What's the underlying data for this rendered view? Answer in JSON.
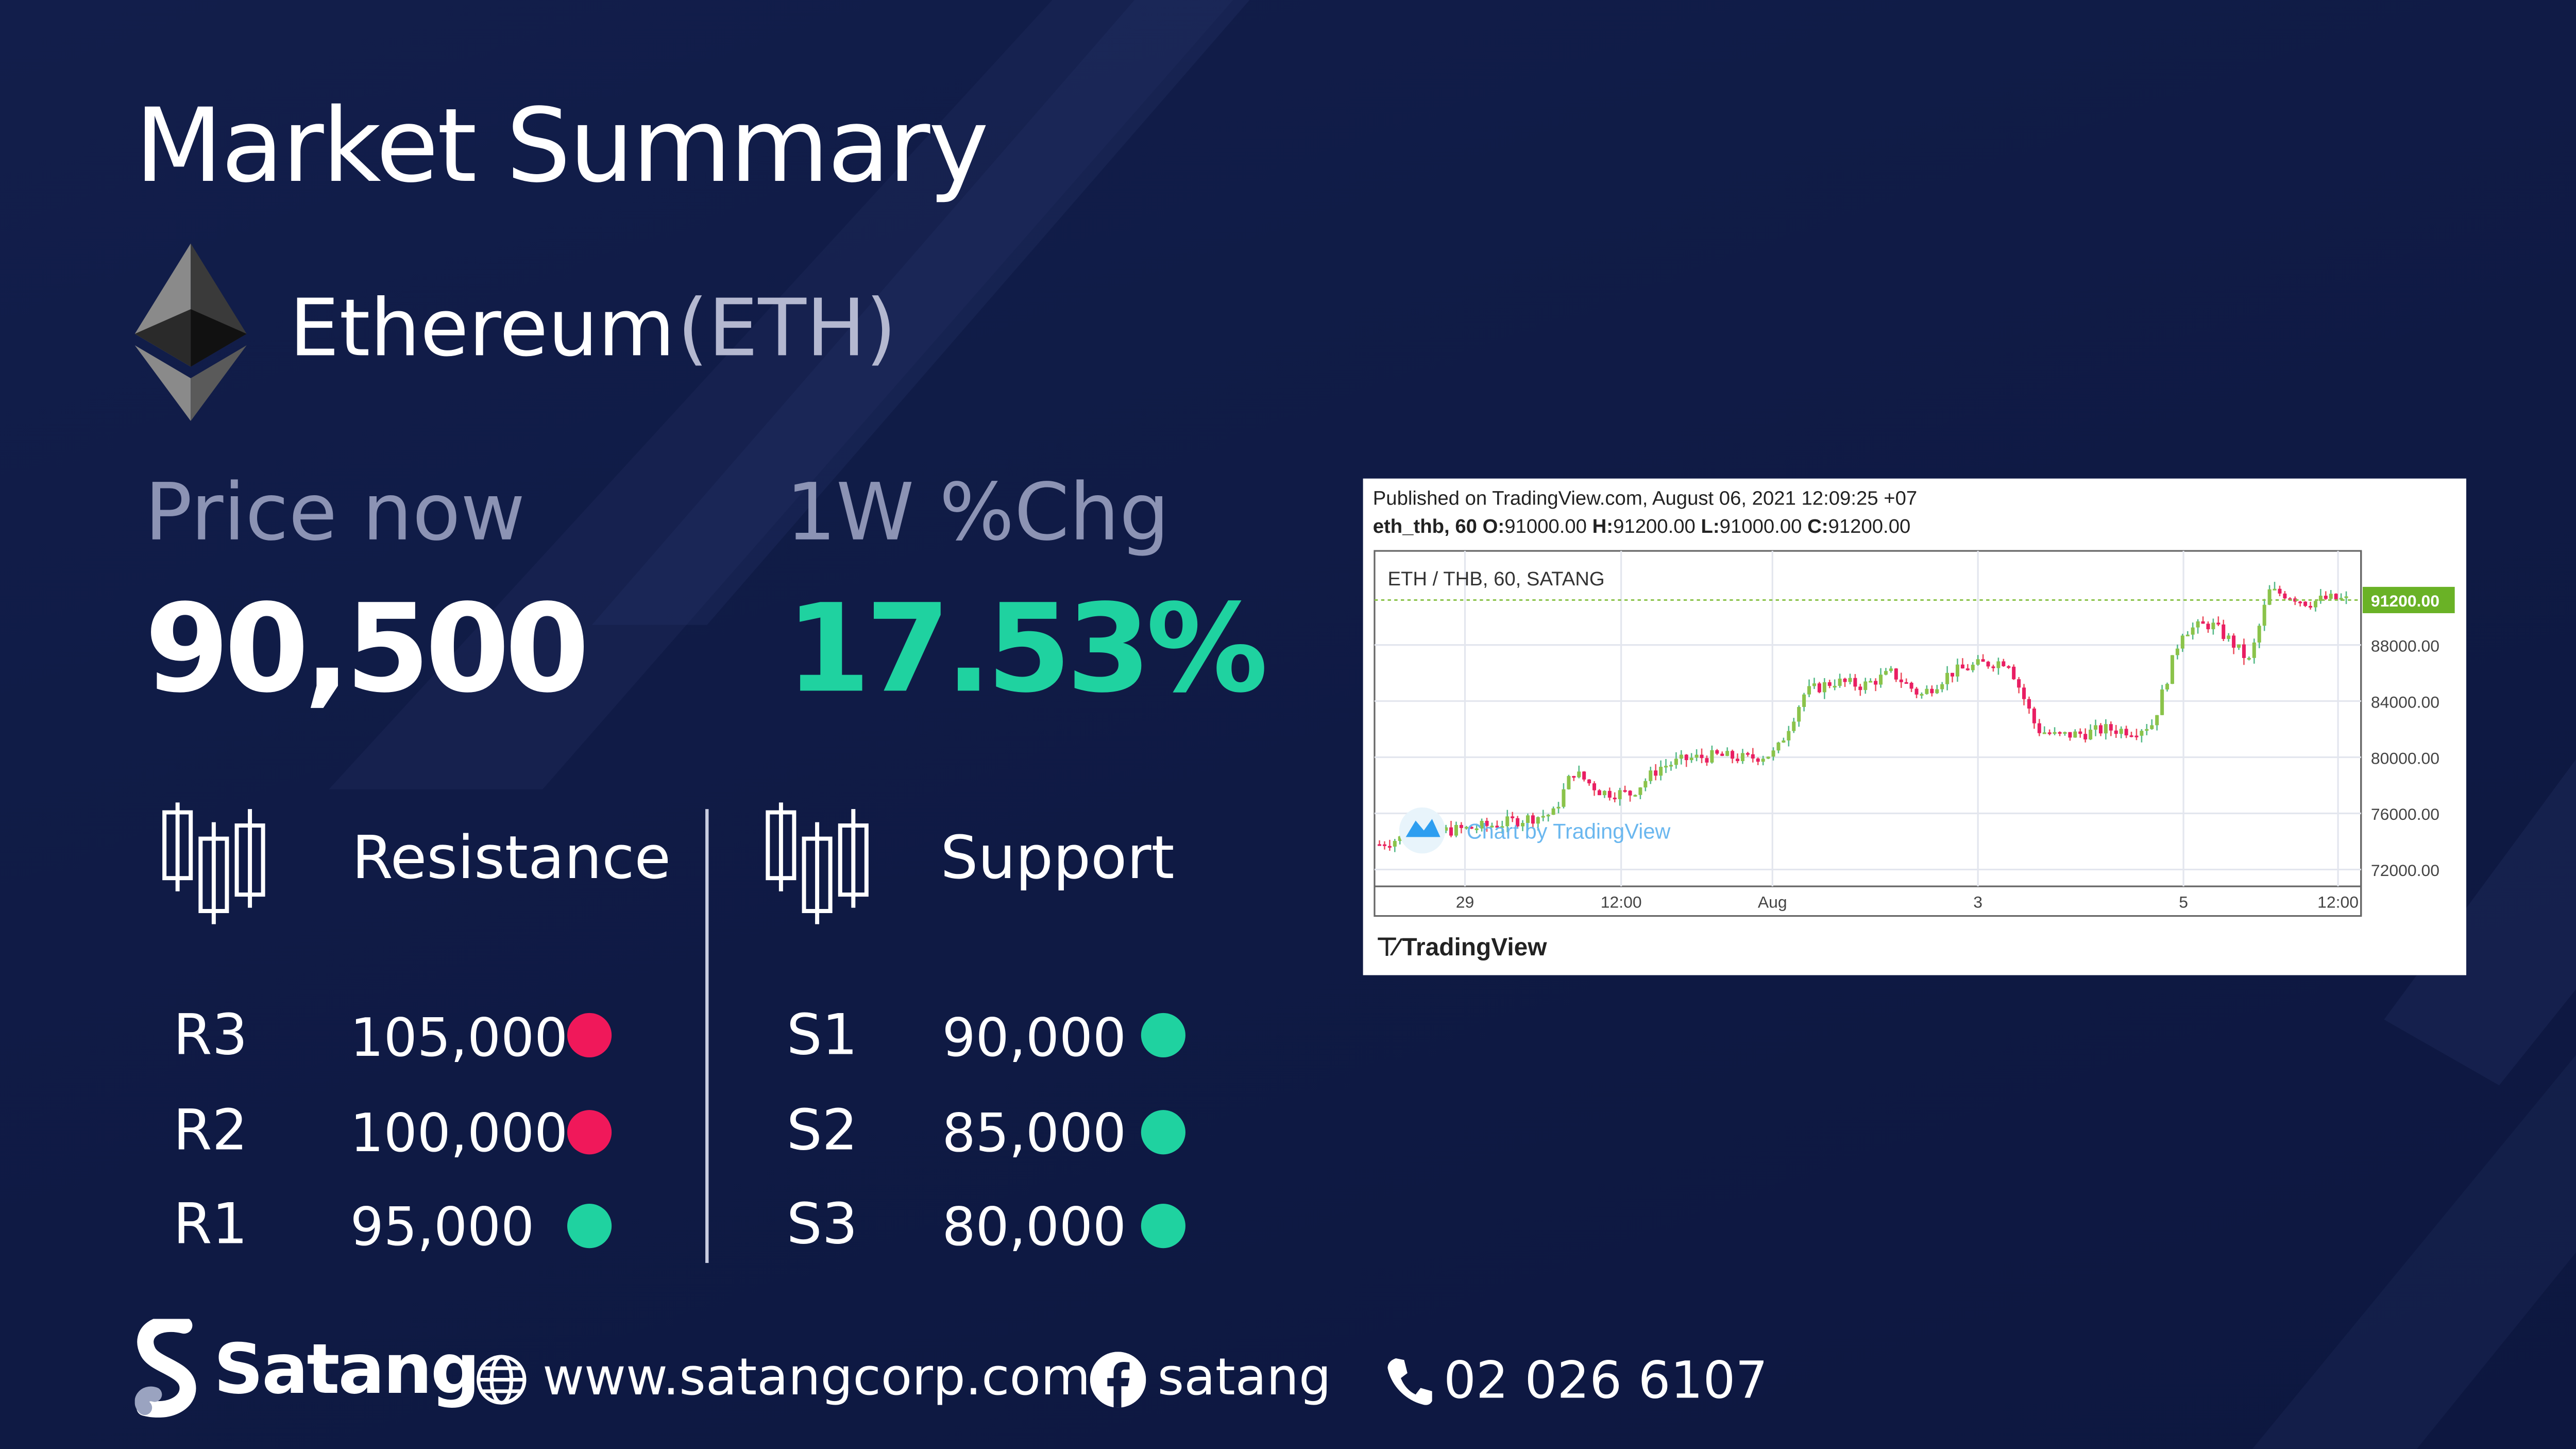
{
  "title": "Market Summary",
  "coin": {
    "name": "Ethereum",
    "symbol": "(ETH)"
  },
  "price": {
    "label": "Price now",
    "value": "90,500"
  },
  "change": {
    "label": "1W %Chg",
    "value": "17.53%"
  },
  "resistance": {
    "heading": "Resistance",
    "levels": [
      {
        "code": "R3",
        "value": "105,000",
        "status": "red"
      },
      {
        "code": "R2",
        "value": "100,000",
        "status": "red"
      },
      {
        "code": "R1",
        "value": "95,000",
        "status": "green"
      }
    ]
  },
  "support": {
    "heading": "Support",
    "levels": [
      {
        "code": "S1",
        "value": "90,000",
        "status": "green"
      },
      {
        "code": "S2",
        "value": "85,000",
        "status": "green"
      },
      {
        "code": "S3",
        "value": "80,000",
        "status": "green"
      }
    ]
  },
  "colors": {
    "background": "#0f1a42",
    "accent_green": "#1fd2a0",
    "accent_red": "#f0185a",
    "muted": "#8c93b4"
  },
  "chart_card": {
    "published": "Published on TradingView.com, August 06, 2021 12:09:25 +07",
    "ohlc": {
      "symbol": "eth_thb, 60",
      "o": "91000.00",
      "h": "91200.00",
      "l": "91000.00",
      "c": "91200.00"
    },
    "ohlc_labels": {
      "o": "O:",
      "h": "H:",
      "l": "L:",
      "c": "C:"
    },
    "pair_label": "ETH / THB, 60, SATANG",
    "watermark": "Chart by TradingView",
    "footer_brand": "TradingView",
    "last_price": "91200.00"
  },
  "chart_data": {
    "type": "line",
    "title": "ETH / THB, 60, SATANG",
    "x_ticks": [
      "29",
      "12:00",
      "Aug",
      "3",
      "5",
      "12:00"
    ],
    "y_ticks": [
      "88000.00",
      "84000.00",
      "80000.00",
      "76000.00",
      "72000.00"
    ],
    "ylim": [
      70800,
      94700
    ],
    "x": [
      0,
      0.03,
      0.06,
      0.09,
      0.12,
      0.15,
      0.18,
      0.2,
      0.23,
      0.26,
      0.29,
      0.32,
      0.35,
      0.38,
      0.41,
      0.44,
      0.47,
      0.5,
      0.53,
      0.56,
      0.59,
      0.62,
      0.65,
      0.68,
      0.7,
      0.73,
      0.75,
      0.78,
      0.8,
      0.83,
      0.86,
      0.88,
      0.9,
      0.92,
      0.94,
      0.96,
      0.98,
      1.0
    ],
    "series": [
      {
        "values": [
          73800,
          74400,
          74700,
          74900,
          75200,
          75600,
          76000,
          79000,
          77500,
          77400,
          79300,
          79900,
          80100,
          79900,
          80300,
          84600,
          85400,
          85100,
          86000,
          84400,
          86000,
          86600,
          86900,
          82000,
          81500,
          81700,
          82000,
          81900,
          82400,
          89000,
          89500,
          88300,
          86800,
          91800,
          91600,
          91000,
          91300,
          91200
        ]
      }
    ],
    "last_value": 91200,
    "grid": true
  },
  "footer": {
    "brand": "Satang",
    "website": "www.satangcorp.com",
    "facebook": "satang",
    "phone": "02 026 6107"
  }
}
